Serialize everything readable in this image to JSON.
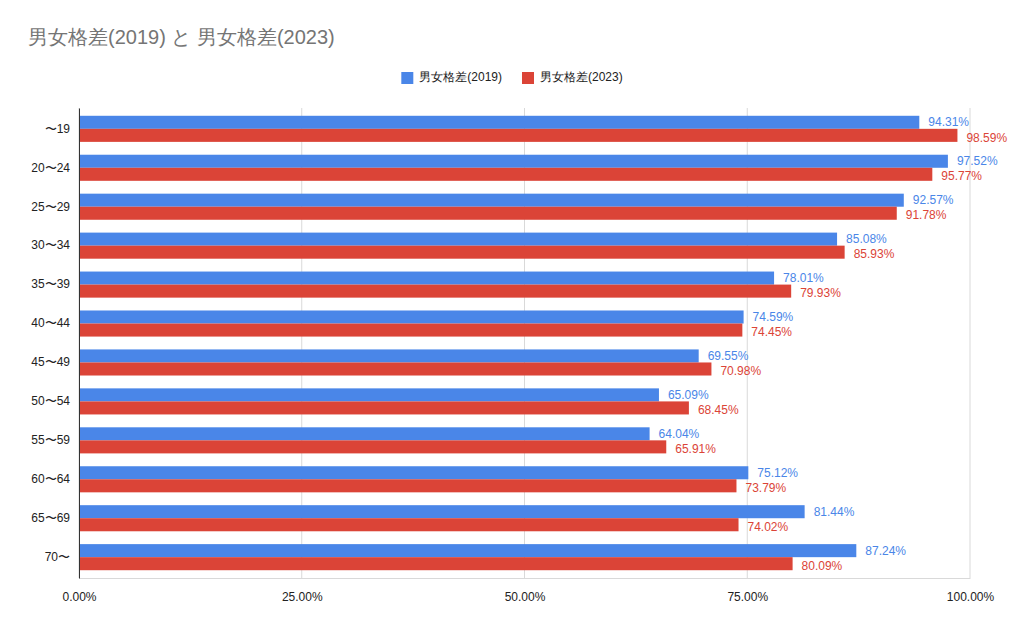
{
  "chart_data": {
    "type": "bar",
    "title": "男女格差(2019) と 男女格差(2023)",
    "orientation": "horizontal",
    "grid": true,
    "legend": "top",
    "data_labels": true,
    "categories": [
      "〜19",
      "20〜24",
      "25〜29",
      "30〜34",
      "35〜39",
      "40〜44",
      "45〜49",
      "50〜54",
      "55〜59",
      "60〜64",
      "65〜69",
      "70〜"
    ],
    "series": [
      {
        "name": "男女格差(2019)",
        "color": "#4a86e8",
        "values": [
          94.31,
          97.52,
          92.57,
          85.08,
          78.01,
          74.59,
          69.55,
          65.09,
          64.04,
          75.12,
          81.44,
          87.24
        ],
        "value_labels": [
          "94.31%",
          "97.52%",
          "92.57%",
          "85.08%",
          "78.01%",
          "74.59%",
          "69.55%",
          "65.09%",
          "64.04%",
          "75.12%",
          "81.44%",
          "87.24%"
        ]
      },
      {
        "name": "男女格差(2023)",
        "color": "#db4437",
        "values": [
          98.59,
          95.77,
          91.78,
          85.93,
          79.93,
          74.45,
          70.98,
          68.45,
          65.91,
          73.79,
          74.02,
          80.09
        ],
        "value_labels": [
          "98.59%",
          "95.77%",
          "91.78%",
          "85.93%",
          "79.93%",
          "74.45%",
          "70.98%",
          "68.45%",
          "65.91%",
          "73.79%",
          "74.02%",
          "80.09%"
        ]
      }
    ],
    "xlim": [
      0,
      100
    ],
    "xticks": [
      {
        "value": 0,
        "label": "0.00%"
      },
      {
        "value": 25,
        "label": "25.00%"
      },
      {
        "value": 50,
        "label": "50.00%"
      },
      {
        "value": 75,
        "label": "75.00%"
      },
      {
        "value": 100,
        "label": "100.00%"
      }
    ]
  }
}
